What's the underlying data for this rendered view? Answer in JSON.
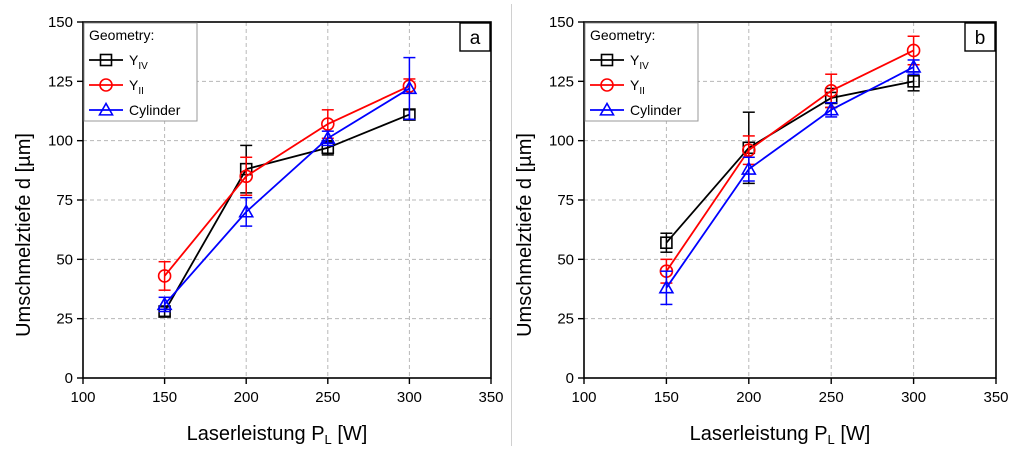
{
  "chart_data": [
    {
      "type": "line",
      "panel_label": "a",
      "xlabel": "Laserleistung",
      "xlabel_symbol": "P",
      "xlabel_subscript": "L",
      "xlabel_unit": "[W]",
      "ylabel": "Umschmelztiefe",
      "ylabel_symbol": "d",
      "ylabel_unit": "[µm]",
      "xlim": [
        100,
        350
      ],
      "ylim": [
        0,
        150
      ],
      "xticks": [
        100,
        150,
        200,
        250,
        300,
        350
      ],
      "yticks": [
        0,
        25,
        50,
        75,
        100,
        125,
        150
      ],
      "grid": true,
      "legend_position": "top-left",
      "legend_title": "Geometry:",
      "x": [
        150,
        200,
        250,
        300
      ],
      "series": [
        {
          "name": "Y",
          "name_subscript": "IV",
          "color": "#000000",
          "marker": "square",
          "values": [
            28,
            88,
            97,
            111
          ],
          "error": [
            2,
            10,
            3,
            2
          ]
        },
        {
          "name": "Y",
          "name_subscript": "II",
          "color": "#ff0000",
          "marker": "circle",
          "values": [
            43,
            85,
            107,
            123
          ],
          "error": [
            6,
            8,
            6,
            3
          ]
        },
        {
          "name": "Cylinder",
          "color": "#0000ff",
          "marker": "triangle",
          "values": [
            31,
            70,
            101,
            122
          ],
          "error": [
            3,
            6,
            3,
            13
          ]
        }
      ]
    },
    {
      "type": "line",
      "panel_label": "b",
      "xlabel": "Laserleistung",
      "xlabel_symbol": "P",
      "xlabel_subscript": "L",
      "xlabel_unit": "[W]",
      "ylabel": "Umschmelztiefe",
      "ylabel_symbol": "d",
      "ylabel_unit": "[µm]",
      "xlim": [
        100,
        350
      ],
      "ylim": [
        0,
        150
      ],
      "xticks": [
        100,
        150,
        200,
        250,
        300,
        350
      ],
      "yticks": [
        0,
        25,
        50,
        75,
        100,
        125,
        150
      ],
      "grid": true,
      "legend_position": "top-left",
      "legend_title": "Geometry:",
      "x": [
        150,
        200,
        250,
        300
      ],
      "series": [
        {
          "name": "Y",
          "name_subscript": "IV",
          "color": "#000000",
          "marker": "square",
          "values": [
            57,
            97,
            118,
            125
          ],
          "error": [
            4,
            15,
            4,
            4
          ]
        },
        {
          "name": "Y",
          "name_subscript": "II",
          "color": "#ff0000",
          "marker": "circle",
          "values": [
            45,
            96,
            121,
            138
          ],
          "error": [
            5,
            6,
            7,
            6
          ]
        },
        {
          "name": "Cylinder",
          "color": "#0000ff",
          "marker": "triangle",
          "values": [
            38,
            88,
            113,
            131
          ],
          "error": [
            7,
            5,
            3,
            3
          ]
        }
      ]
    }
  ]
}
